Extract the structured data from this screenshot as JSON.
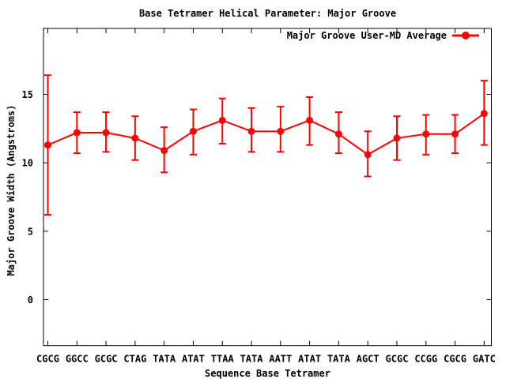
{
  "chart_data": {
    "type": "line",
    "title": "Base Tetramer Helical Parameter: Major Groove",
    "xlabel": "Sequence Base Tetramer",
    "ylabel": "Major Groove Width (Angstroms)",
    "categories": [
      "CGCG",
      "GGCC",
      "GCGC",
      "CTAG",
      "TATA",
      "ATAT",
      "TTAA",
      "TATA",
      "AATT",
      "ATAT",
      "TATA",
      "AGCT",
      "GCGC",
      "CCGG",
      "CGCG",
      "GATC"
    ],
    "series": [
      {
        "name": "Major Groove User-MD Average",
        "color": "#ff0000",
        "marker": "filled-circle",
        "line_style": "solid",
        "values": [
          11.3,
          12.2,
          12.2,
          11.8,
          10.9,
          12.3,
          13.1,
          12.3,
          12.3,
          13.1,
          12.1,
          10.6,
          11.8,
          12.1,
          12.1,
          13.6
        ],
        "error_low": [
          6.2,
          10.7,
          10.8,
          10.2,
          9.3,
          10.6,
          11.4,
          10.8,
          10.8,
          11.3,
          10.7,
          9.0,
          10.2,
          10.6,
          10.7,
          11.3
        ],
        "error_high": [
          16.4,
          13.7,
          13.7,
          13.4,
          12.6,
          13.9,
          14.7,
          14.0,
          14.1,
          14.8,
          13.7,
          12.3,
          13.4,
          13.5,
          13.5,
          16.0
        ]
      }
    ],
    "yticks": [
      0,
      5,
      10,
      15
    ],
    "ylim": [
      -3.36,
      19.82
    ],
    "grid": false,
    "error_bars": true,
    "legend_position": "top-right-inside"
  },
  "colors": {
    "series": "#ff0000",
    "axis": "#000000",
    "text": "#000000",
    "background": "#ffffff"
  }
}
